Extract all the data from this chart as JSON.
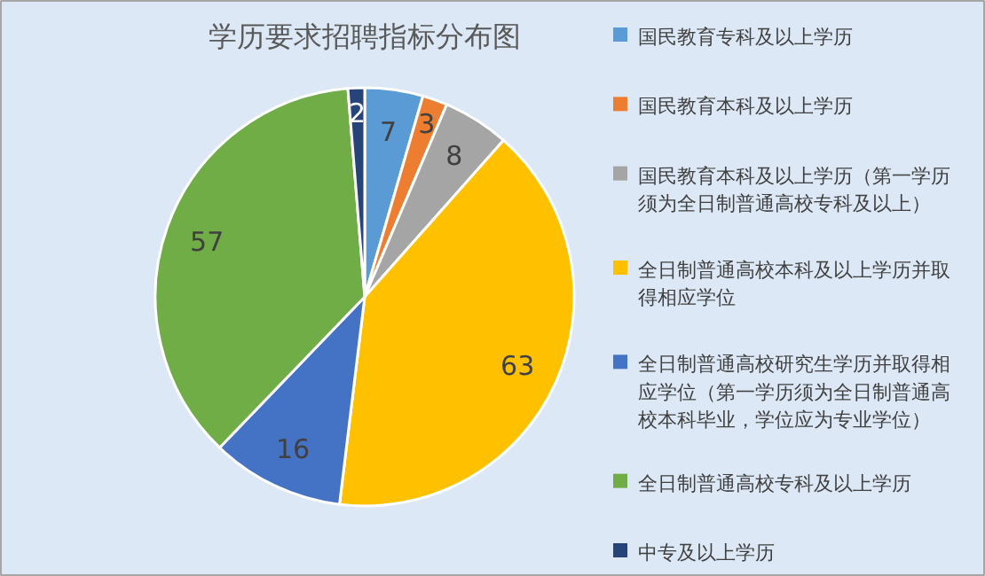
{
  "chart_data": {
    "type": "pie",
    "title": "学历要求招聘指标分布图",
    "categories": [
      "国民教育专科及以上学历",
      "国民教育本科及以上学历",
      "国民教育本科及以上学历（第一学历须为全日制普通高校专科及以上）",
      "全日制普通高校本科及以上学历并取得相应学位",
      "全日制普通高校研究生学历并取得相应学位（第一学历须为全日制普通高校本科毕业，学位应为专业学位）",
      "全日制普通高校专科及以上学历",
      "中专及以上学历"
    ],
    "values": [
      7,
      3,
      8,
      63,
      16,
      57,
      2
    ],
    "colors": [
      "#5b9bd5",
      "#ed7d31",
      "#a5a5a5",
      "#ffc000",
      "#4472c4",
      "#70ad47",
      "#264478"
    ],
    "data_labels": true,
    "legend": "right"
  }
}
